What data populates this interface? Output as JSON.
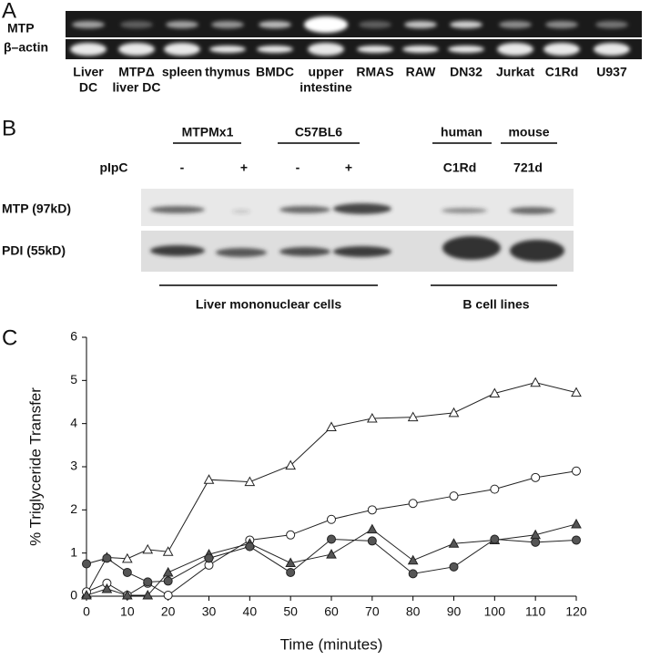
{
  "panel_a": {
    "label": "A",
    "row_labels": [
      "MTP",
      "β–actin"
    ],
    "lane_labels": [
      [
        "Liver",
        "DC"
      ],
      [
        "MTPΔ",
        "liver DC"
      ],
      [
        "spleen"
      ],
      [
        "thymus"
      ],
      [
        "BMDC"
      ],
      [
        "upper",
        "intestine"
      ],
      [
        "RMAS"
      ],
      [
        "RAW"
      ],
      [
        "DN32"
      ],
      [
        "Jurkat"
      ],
      [
        "C1Rd"
      ],
      [
        "U937"
      ]
    ]
  },
  "panel_b": {
    "label": "B",
    "groups": [
      "MTPMx1",
      "C57BL6",
      "human",
      "mouse"
    ],
    "treatment_label": "pIpC",
    "treatments": [
      "-",
      "+",
      "-",
      "+"
    ],
    "cell_lines": [
      "C1Rd",
      "721d"
    ],
    "row_labels": [
      "MTP (97kD)",
      "PDI (55kD)"
    ],
    "footers": [
      "Liver mononuclear cells",
      "B cell lines"
    ]
  },
  "chart_data": {
    "type": "line",
    "panel_label": "C",
    "x_label": "Time (minutes)",
    "y_label": "% Triglyceride Transfer",
    "xlim": [
      0,
      120
    ],
    "xticks": [
      0,
      10,
      20,
      30,
      40,
      50,
      60,
      70,
      80,
      90,
      100,
      110,
      120
    ],
    "ylim": [
      0,
      6
    ],
    "yticks": [
      0,
      1,
      2,
      3,
      4,
      5,
      6
    ],
    "x": [
      0,
      5,
      10,
      15,
      20,
      30,
      40,
      50,
      60,
      70,
      80,
      90,
      100,
      110,
      120
    ],
    "series": [
      {
        "marker": "triangle",
        "color": "#ffffff",
        "values": [
          0.05,
          0.9,
          0.87,
          1.08,
          1.03,
          2.7,
          2.65,
          3.03,
          3.92,
          4.12,
          4.15,
          4.25,
          4.7,
          4.95,
          4.72
        ]
      },
      {
        "marker": "circle",
        "color": "#ffffff",
        "values": [
          0.1,
          0.3,
          0.02,
          0.3,
          0.02,
          0.72,
          1.3,
          1.42,
          1.78,
          2.0,
          2.15,
          2.32,
          2.48,
          2.75,
          2.9
        ]
      },
      {
        "marker": "triangle",
        "color": "#555555",
        "values": [
          0.02,
          0.17,
          0.02,
          0.02,
          0.55,
          0.97,
          1.22,
          0.77,
          0.97,
          1.55,
          0.83,
          1.22,
          1.3,
          1.42,
          1.67
        ]
      },
      {
        "marker": "circle",
        "color": "#555555",
        "values": [
          0.75,
          0.88,
          0.55,
          0.33,
          0.35,
          0.88,
          1.15,
          0.55,
          1.32,
          1.28,
          0.52,
          0.68,
          1.32,
          1.25,
          1.3
        ]
      }
    ]
  }
}
